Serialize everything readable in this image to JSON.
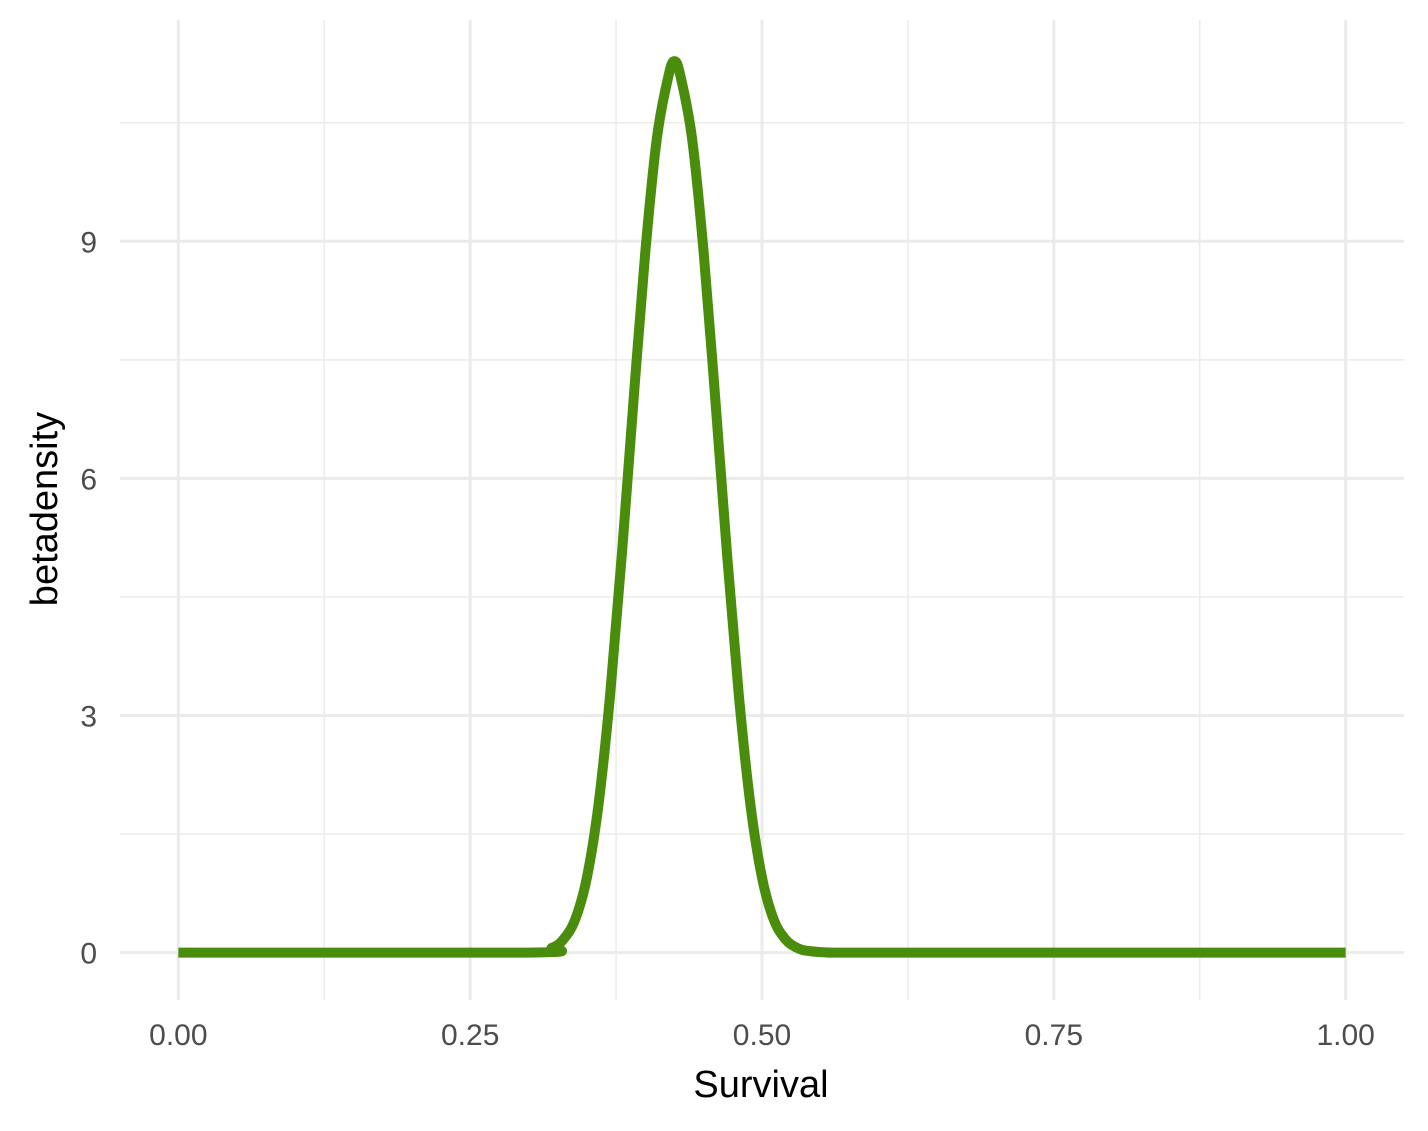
{
  "chart_data": {
    "type": "line",
    "title": "",
    "xlabel": "Survival",
    "ylabel": "betadensity",
    "xlim": [
      -0.05,
      1.05
    ],
    "ylim": [
      -0.6,
      11.8
    ],
    "x_ticks": [
      0,
      0.25,
      0.5,
      0.75,
      1
    ],
    "x_tick_labels": [
      "0.00",
      "0.25",
      "0.50",
      "0.75",
      "1.00"
    ],
    "x_minor_ticks": [
      0.125,
      0.375,
      0.625,
      0.875
    ],
    "y_ticks": [
      0,
      3,
      6,
      9
    ],
    "y_tick_labels": [
      "0",
      "3",
      "6",
      "9"
    ],
    "y_minor_ticks": [
      1.5,
      4.5,
      7.5,
      10.5
    ],
    "grid": true,
    "legend": "none",
    "series": [
      {
        "color": "#4a8c0b",
        "x": [
          0.0,
          0.3,
          0.32,
          0.33,
          0.34,
          0.35,
          0.36,
          0.37,
          0.38,
          0.39,
          0.4,
          0.41,
          0.42,
          0.425,
          0.43,
          0.44,
          0.45,
          0.46,
          0.47,
          0.48,
          0.49,
          0.5,
          0.51,
          0.52,
          0.53,
          0.54,
          0.56,
          0.6,
          1.0
        ],
        "y": [
          0.0,
          0.0,
          0.06,
          0.17,
          0.42,
          0.95,
          1.88,
          3.28,
          5.05,
          7.0,
          8.86,
          10.31,
          11.1,
          11.28,
          11.1,
          10.31,
          8.86,
          7.0,
          5.05,
          3.28,
          1.88,
          0.95,
          0.42,
          0.17,
          0.06,
          0.02,
          0.0,
          0.0,
          0.0
        ]
      }
    ]
  }
}
